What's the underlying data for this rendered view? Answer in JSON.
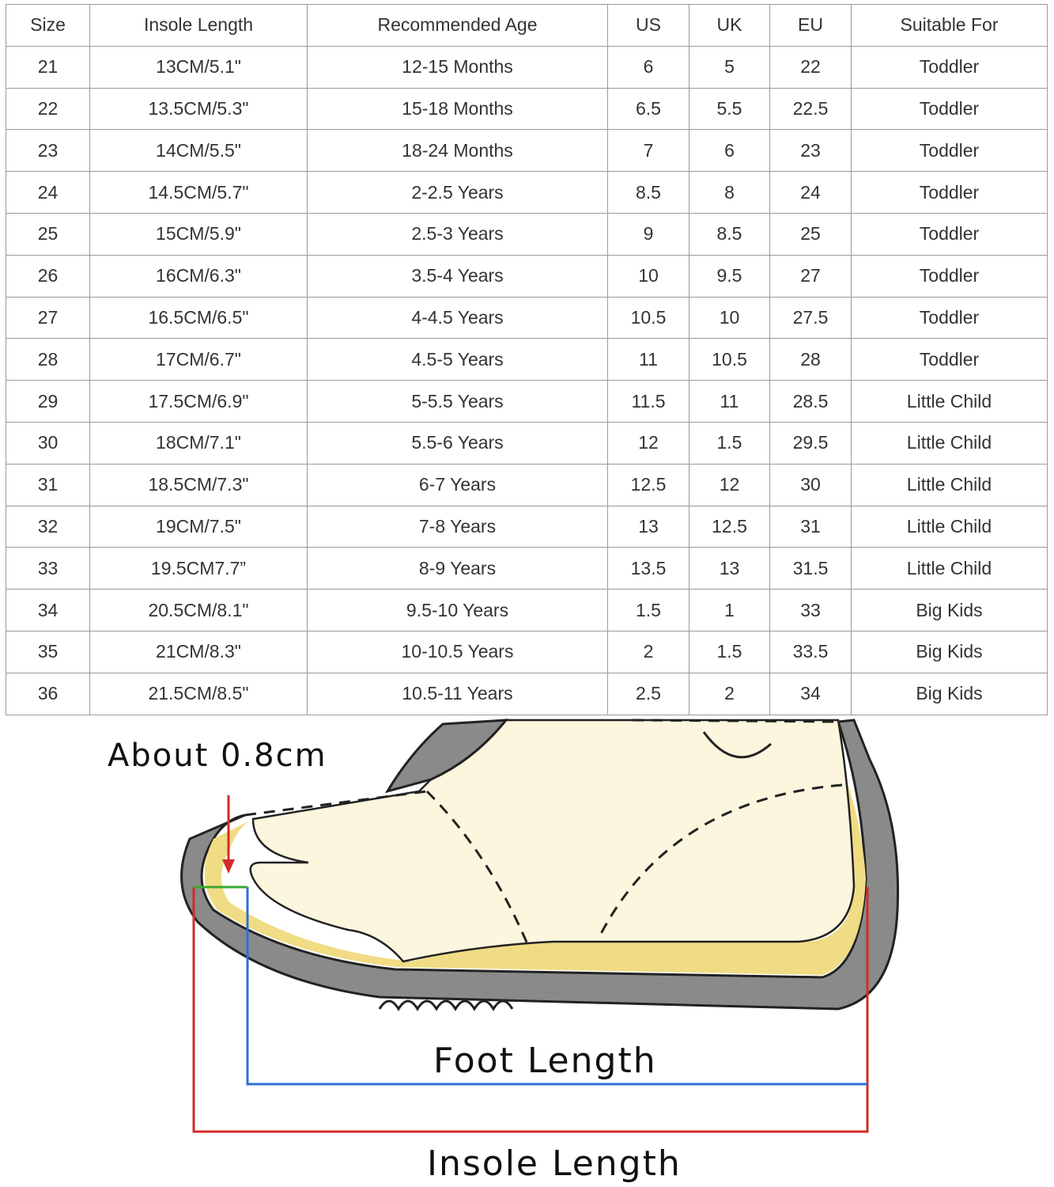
{
  "size_table": {
    "headers": [
      "Size",
      "Insole Length",
      "Recommended Age",
      "US",
      "UK",
      "EU",
      "Suitable For"
    ],
    "rows": [
      [
        "21",
        "13CM/5.1\"",
        "12-15 Months",
        "6",
        "5",
        "22",
        "Toddler"
      ],
      [
        "22",
        "13.5CM/5.3\"",
        "15-18 Months",
        "6.5",
        "5.5",
        "22.5",
        "Toddler"
      ],
      [
        "23",
        "14CM/5.5\"",
        "18-24 Months",
        "7",
        "6",
        "23",
        "Toddler"
      ],
      [
        "24",
        "14.5CM/5.7\"",
        "2-2.5 Years",
        "8.5",
        "8",
        "24",
        "Toddler"
      ],
      [
        "25",
        "15CM/5.9\"",
        "2.5-3 Years",
        "9",
        "8.5",
        "25",
        "Toddler"
      ],
      [
        "26",
        "16CM/6.3\"",
        "3.5-4 Years",
        "10",
        "9.5",
        "27",
        "Toddler"
      ],
      [
        "27",
        "16.5CM/6.5\"",
        "4-4.5 Years",
        "10.5",
        "10",
        "27.5",
        "Toddler"
      ],
      [
        "28",
        "17CM/6.7\"",
        "4.5-5 Years",
        "11",
        "10.5",
        "28",
        "Toddler"
      ],
      [
        "29",
        "17.5CM/6.9\"",
        "5-5.5 Years",
        "11.5",
        "11",
        "28.5",
        "Little Child"
      ],
      [
        "30",
        "18CM/7.1\"",
        "5.5-6 Years",
        "12",
        "1.5",
        "29.5",
        "Little Child"
      ],
      [
        "31",
        "18.5CM/7.3\"",
        "6-7 Years",
        "12.5",
        "12",
        "30",
        "Little Child"
      ],
      [
        "32",
        "19CM/7.5\"",
        "7-8 Years",
        "13",
        "12.5",
        "31",
        "Little Child"
      ],
      [
        "33",
        "19.5CM7.7”",
        "8-9 Years",
        "13.5",
        "13",
        "31.5",
        "Little Child"
      ],
      [
        "34",
        "20.5CM/8.1\"",
        "9.5-10 Years",
        "1.5",
        "1",
        "33",
        "Big Kids"
      ],
      [
        "35",
        "21CM/8.3\"",
        "10-10.5 Years",
        "2",
        "1.5",
        "33.5",
        "Big Kids"
      ],
      [
        "36",
        "21.5CM/8.5\"",
        "10.5-11 Years",
        "2.5",
        "2",
        "34",
        "Big Kids"
      ]
    ]
  },
  "diagram": {
    "toe_gap_label": "About 0.8cm",
    "foot_length_label": "Foot Length",
    "insole_length_label": "Insole Length",
    "colors": {
      "foot_length_line": "#2f6fd6",
      "insole_length_line": "#d42a2a",
      "toe_gap_line": "#3aa832",
      "sole": "#8a8a8a",
      "foot": "#fbf6dd",
      "insole": "#f0dc84"
    }
  }
}
